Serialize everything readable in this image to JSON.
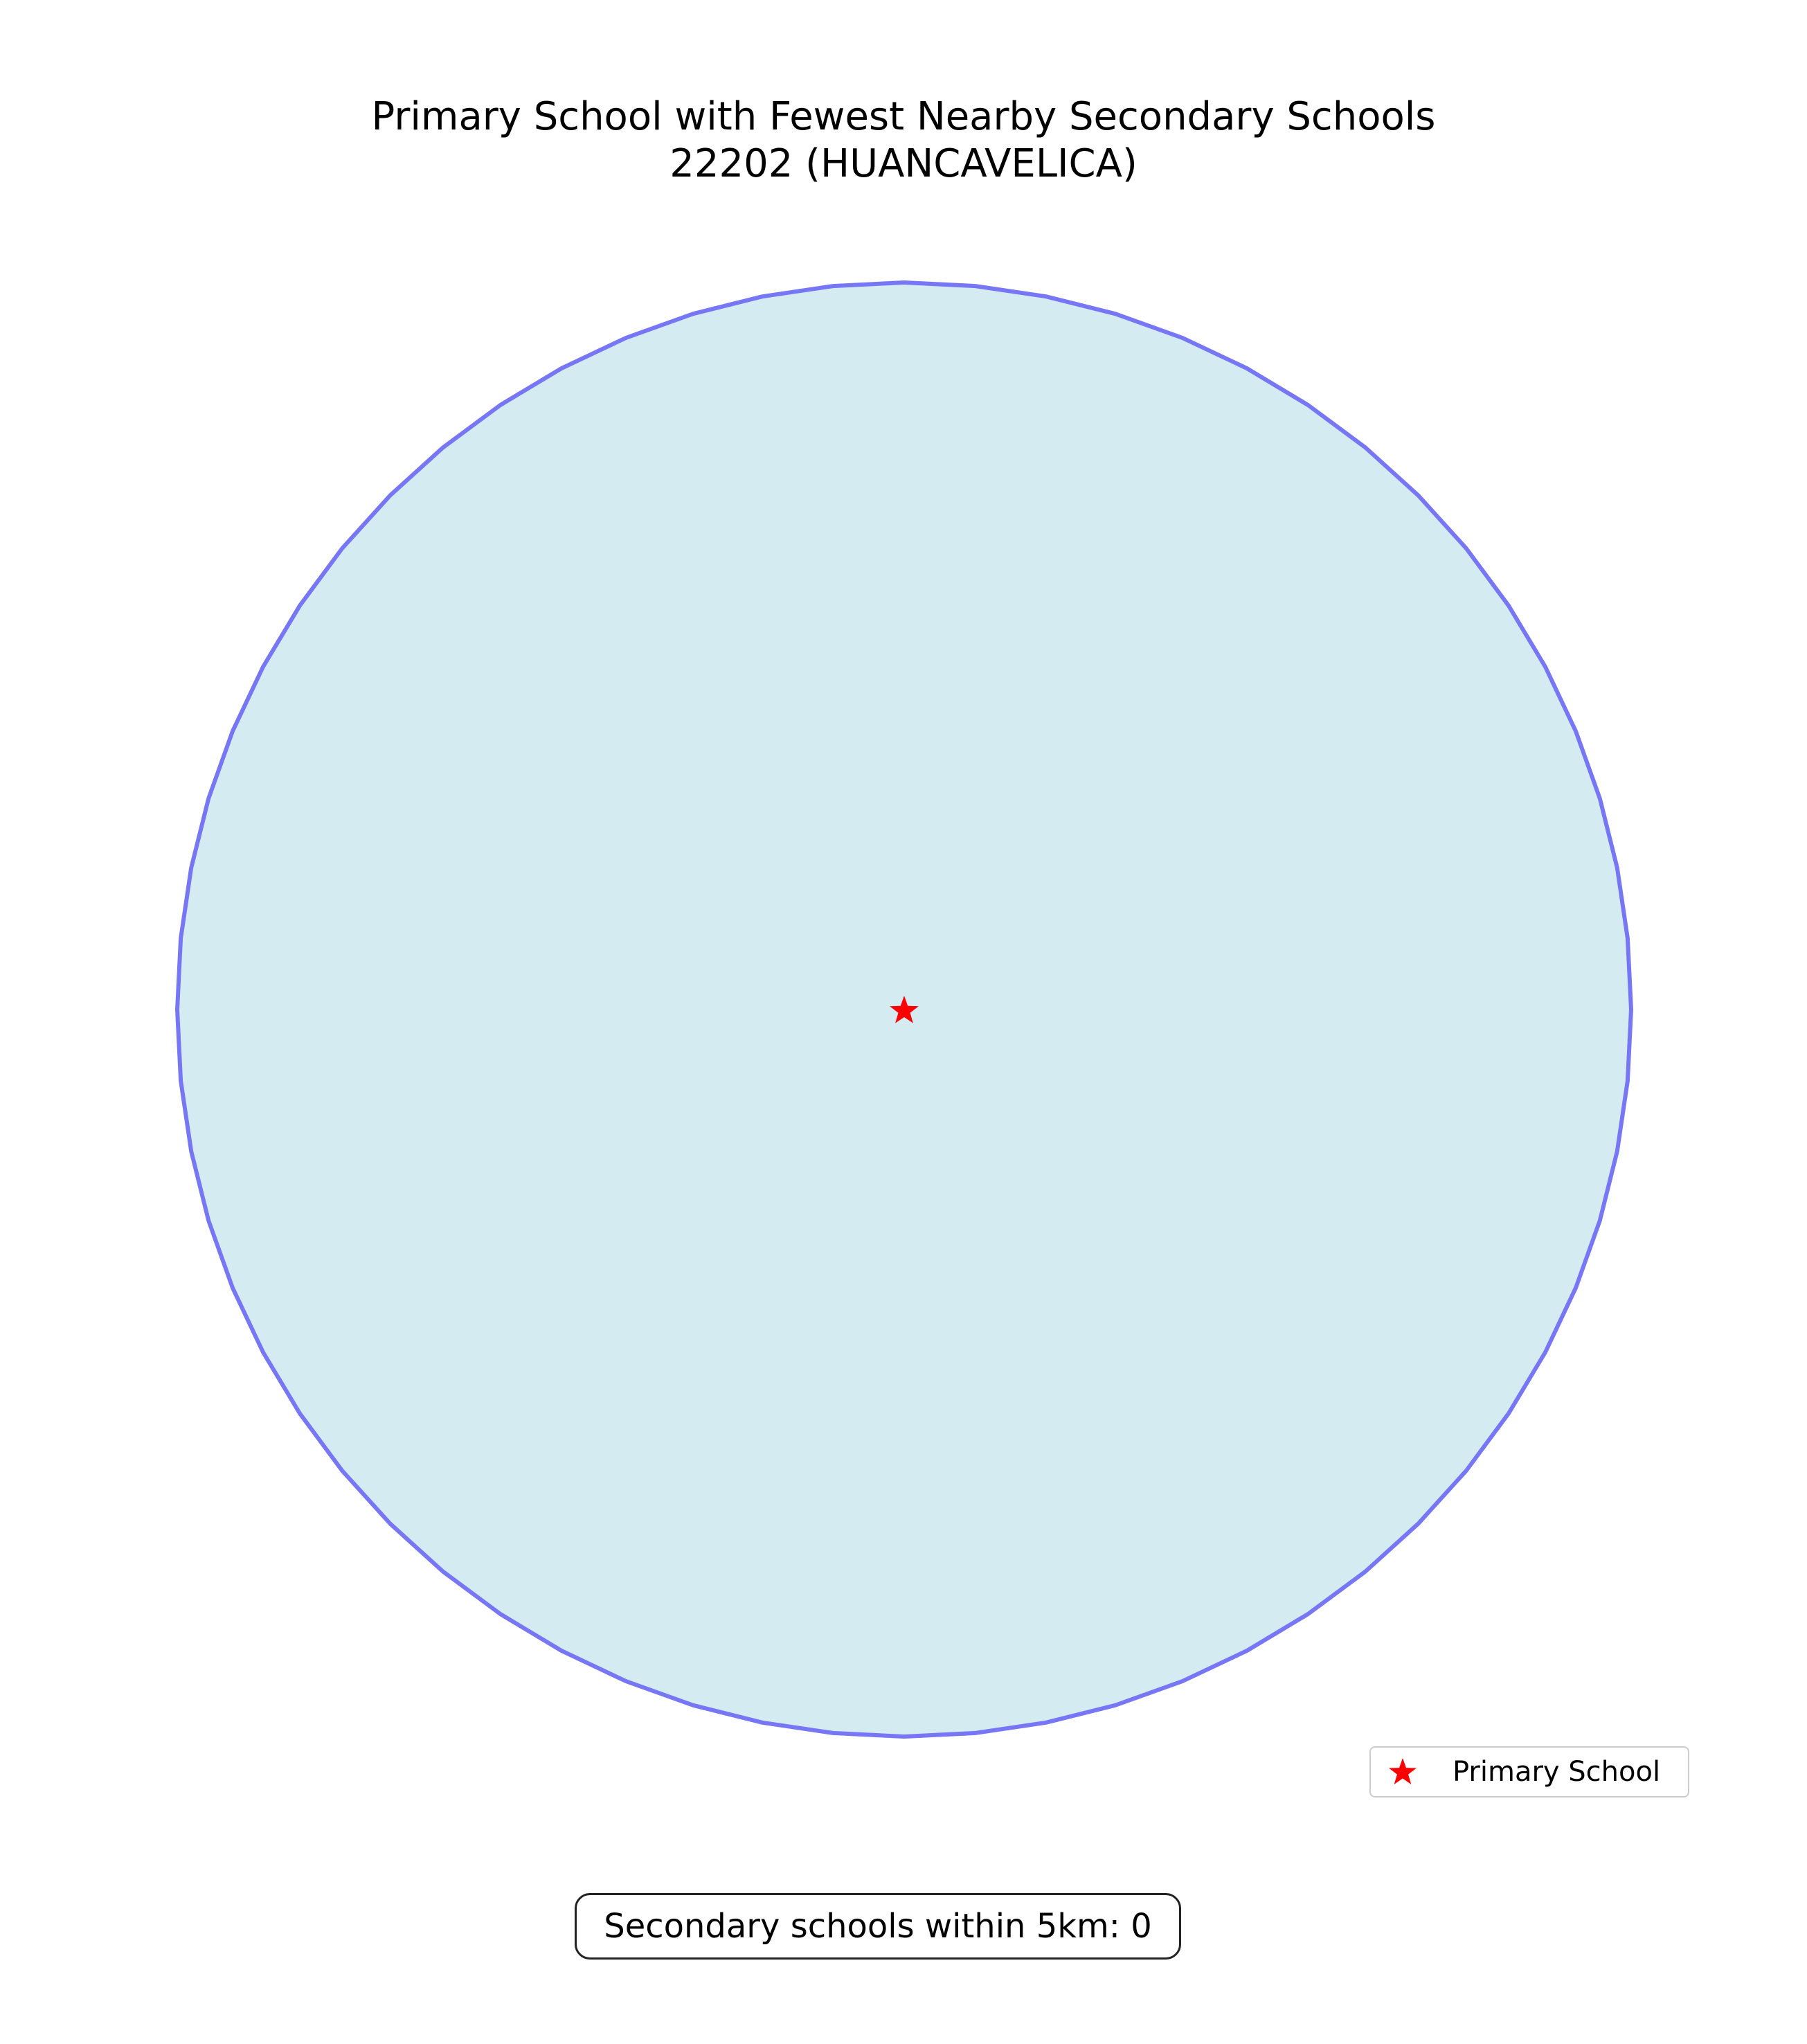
{
  "title": {
    "line1": "Primary School with Fewest Nearby Secondary Schools",
    "line2": "22202 (HUANCAVELICA)"
  },
  "map": {
    "buffer_fill_color": "#d4ebf2",
    "buffer_edge_color": "#7777f6",
    "primary_school_marker": "star-icon",
    "primary_school_color": "#ff0000"
  },
  "legend": {
    "items": [
      {
        "label": "Primary School",
        "marker": "star-icon",
        "color": "#ff0000"
      }
    ]
  },
  "summary": {
    "text": "Secondary schools within 5km: 0",
    "count": 0
  }
}
